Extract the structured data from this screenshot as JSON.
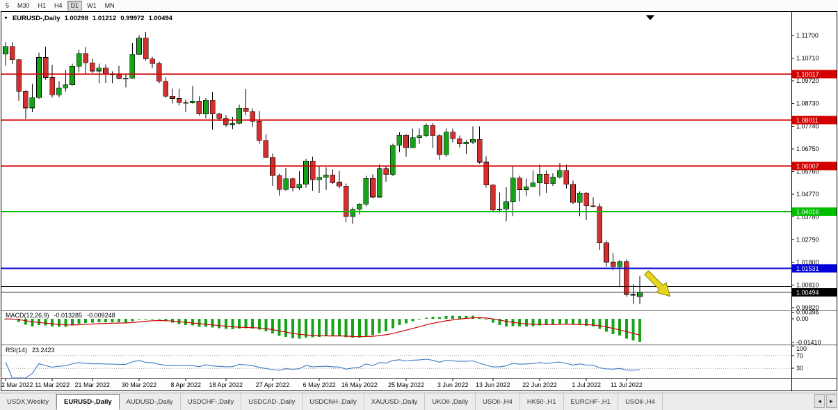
{
  "toolbar": {
    "timeframes": [
      {
        "label": "5",
        "active": false
      },
      {
        "label": "M30",
        "active": false
      },
      {
        "label": "H1",
        "active": false
      },
      {
        "label": "H4",
        "active": false
      },
      {
        "label": "D1",
        "active": true
      },
      {
        "label": "W1",
        "active": false
      },
      {
        "label": "MN",
        "active": false
      }
    ]
  },
  "chart_header": {
    "caret": "▼",
    "symbol": "EURUSD-,Daily",
    "open": "1.00298",
    "high": "1.01212",
    "low": "0.99972",
    "close": "1.00494"
  },
  "chart_data": {
    "type": "candlestick",
    "symbol": "EURUSD-,Daily",
    "price_range": {
      "min": 0.997,
      "max": 1.127
    },
    "colors": {
      "up": "#17A317",
      "down": "#D32F2F",
      "wick": "#000000",
      "macd_hist": "#17A317",
      "macd_signal": "#CC0000",
      "rsi_line": "#3A76C4",
      "level_dotted": "#999999"
    },
    "candles": [
      [
        1.1089,
        1.1141,
        1.1037,
        1.1122
      ],
      [
        1.1122,
        1.1141,
        1.1045,
        1.1064
      ],
      [
        1.1064,
        1.1066,
        1.0885,
        1.0926
      ],
      [
        1.0926,
        1.0932,
        1.0806,
        1.0854
      ],
      [
        1.0854,
        1.0959,
        1.0835,
        1.0899
      ],
      [
        1.0899,
        1.1095,
        1.0894,
        1.1074
      ],
      [
        1.1074,
        1.1121,
        1.0977,
        1.0986
      ],
      [
        1.0986,
        1.1042,
        1.09,
        1.0911
      ],
      [
        1.0911,
        1.0971,
        1.0901,
        1.0941
      ],
      [
        1.0941,
        1.1019,
        1.0926,
        1.0955
      ],
      [
        1.0955,
        1.1046,
        1.0951,
        1.1035
      ],
      [
        1.1035,
        1.1108,
        1.1009,
        1.1091
      ],
      [
        1.1091,
        1.1119,
        1.1002,
        1.1051
      ],
      [
        1.1051,
        1.1069,
        1.1006,
        1.1015
      ],
      [
        1.1015,
        1.1047,
        1.0962,
        1.1028
      ],
      [
        1.1028,
        1.1044,
        1.0963,
        1.1003
      ],
      [
        1.1003,
        1.1014,
        1.0962,
        1.0997
      ],
      [
        1.0997,
        1.1038,
        1.0979,
        1.0982
      ],
      [
        1.0982,
        1.0999,
        1.0944,
        1.0984
      ],
      [
        1.0984,
        1.1137,
        1.0982,
        1.1087
      ],
      [
        1.1087,
        1.1171,
        1.1084,
        1.1158
      ],
      [
        1.1158,
        1.1185,
        1.1061,
        1.1067
      ],
      [
        1.1067,
        1.1077,
        1.1027,
        1.1047
      ],
      [
        1.1047,
        1.1056,
        1.0962,
        1.097
      ],
      [
        1.097,
        1.0988,
        1.0898,
        1.0905
      ],
      [
        1.0905,
        1.0937,
        1.0874,
        1.0895
      ],
      [
        1.0895,
        1.0938,
        1.0864,
        1.0877
      ],
      [
        1.0877,
        1.089,
        1.0836,
        1.0876
      ],
      [
        1.0876,
        1.095,
        1.0872,
        1.0883
      ],
      [
        1.0883,
        1.0904,
        1.0821,
        1.0827
      ],
      [
        1.0827,
        1.0897,
        1.0809,
        1.0887
      ],
      [
        1.0887,
        1.0924,
        1.0758,
        1.0827
      ],
      [
        1.0827,
        1.0832,
        1.0796,
        1.0808
      ],
      [
        1.0808,
        1.0822,
        1.077,
        1.0781
      ],
      [
        1.0781,
        1.0815,
        1.0761,
        1.0786
      ],
      [
        1.0786,
        1.0867,
        1.0783,
        1.0853
      ],
      [
        1.0853,
        1.0936,
        1.0822,
        1.0838
      ],
      [
        1.0838,
        1.0852,
        1.077,
        1.0795
      ],
      [
        1.0795,
        1.084,
        1.0697,
        1.0712
      ],
      [
        1.0712,
        1.0738,
        1.0635,
        1.0637
      ],
      [
        1.0637,
        1.0655,
        1.0514,
        1.0559
      ],
      [
        1.0559,
        1.0567,
        1.0471,
        1.0498
      ],
      [
        1.0498,
        1.0593,
        1.0492,
        1.0545
      ],
      [
        1.0545,
        1.0549,
        1.049,
        1.0505
      ],
      [
        1.0505,
        1.0578,
        1.0495,
        1.052
      ],
      [
        1.052,
        1.0632,
        1.0506,
        1.0622
      ],
      [
        1.0622,
        1.0642,
        1.0493,
        1.054
      ],
      [
        1.054,
        1.0599,
        1.0483,
        1.0551
      ],
      [
        1.0551,
        1.0594,
        1.0495,
        1.0561
      ],
      [
        1.0561,
        1.0585,
        1.0522,
        1.0529
      ],
      [
        1.0529,
        1.0579,
        1.0503,
        1.0513
      ],
      [
        1.0513,
        1.0525,
        1.0354,
        1.0379
      ],
      [
        1.0379,
        1.042,
        1.0348,
        1.0411
      ],
      [
        1.0411,
        1.0437,
        1.0388,
        1.0434
      ],
      [
        1.0434,
        1.0557,
        1.0424,
        1.0546
      ],
      [
        1.0546,
        1.0564,
        1.046,
        1.0465
      ],
      [
        1.0465,
        1.0607,
        1.0462,
        1.0588
      ],
      [
        1.0588,
        1.0604,
        1.0532,
        1.0563
      ],
      [
        1.0563,
        1.0697,
        1.0556,
        1.0691
      ],
      [
        1.0691,
        1.0748,
        1.0661,
        1.0735
      ],
      [
        1.0735,
        1.0738,
        1.0642,
        1.068
      ],
      [
        1.068,
        1.0765,
        1.0677,
        1.0724
      ],
      [
        1.0724,
        1.0764,
        1.0697,
        1.0733
      ],
      [
        1.0733,
        1.0786,
        1.0726,
        1.0777
      ],
      [
        1.0777,
        1.0787,
        1.0678,
        1.0733
      ],
      [
        1.0733,
        1.0739,
        1.0627,
        1.065
      ],
      [
        1.065,
        1.0764,
        1.0641,
        1.0748
      ],
      [
        1.0748,
        1.0765,
        1.0704,
        1.0719
      ],
      [
        1.0719,
        1.0734,
        1.0683,
        1.0697
      ],
      [
        1.0697,
        1.0712,
        1.0653,
        1.0704
      ],
      [
        1.0704,
        1.0774,
        1.0696,
        1.0716
      ],
      [
        1.0716,
        1.0773,
        1.0611,
        1.0617
      ],
      [
        1.0617,
        1.0643,
        1.0506,
        1.0518
      ],
      [
        1.0518,
        1.052,
        1.0399,
        1.0408
      ],
      [
        1.0408,
        1.0485,
        1.0397,
        1.0413
      ],
      [
        1.0413,
        1.0507,
        1.0359,
        1.0444
      ],
      [
        1.0444,
        1.0601,
        1.0381,
        1.0548
      ],
      [
        1.0548,
        1.0557,
        1.0445,
        1.0497
      ],
      [
        1.0497,
        1.0546,
        1.0469,
        1.051
      ],
      [
        1.051,
        1.0582,
        1.0509,
        1.0527
      ],
      [
        1.0527,
        1.0606,
        1.0469,
        1.0565
      ],
      [
        1.0565,
        1.058,
        1.0483,
        1.0523
      ],
      [
        1.0523,
        1.0568,
        1.0513,
        1.0553
      ],
      [
        1.0553,
        1.0614,
        1.0546,
        1.0581
      ],
      [
        1.0581,
        1.0606,
        1.0502,
        1.052
      ],
      [
        1.052,
        1.0536,
        1.0434,
        1.0442
      ],
      [
        1.0442,
        1.0489,
        1.0381,
        1.0482
      ],
      [
        1.0482,
        1.0486,
        1.0365,
        1.0426
      ],
      [
        1.0426,
        1.0463,
        1.0419,
        1.0423
      ],
      [
        1.0423,
        1.0436,
        1.0235,
        1.0265
      ],
      [
        1.0265,
        1.0276,
        1.0162,
        1.0181
      ],
      [
        1.0181,
        1.0221,
        1.0144,
        1.016
      ],
      [
        1.016,
        1.019,
        1.0071,
        1.0183
      ],
      [
        1.0183,
        1.0193,
        1.003,
        1.004
      ],
      [
        1.004,
        1.0086,
        0.9999,
        1.0037
      ],
      [
        1.003,
        1.0121,
        0.9997,
        1.0049
      ]
    ],
    "x_labels": [
      {
        "i": 0,
        "label": "2 Mar 2022"
      },
      {
        "i": 7,
        "label": "11 Mar 2022"
      },
      {
        "i": 13,
        "label": "21 Mar 2022"
      },
      {
        "i": 20,
        "label": "30 Mar 2022"
      },
      {
        "i": 27,
        "label": "8 Apr 2022"
      },
      {
        "i": 33,
        "label": "18 Apr 2022"
      },
      {
        "i": 40,
        "label": "27 Apr 2022"
      },
      {
        "i": 47,
        "label": "6 May 2022"
      },
      {
        "i": 53,
        "label": "16 May 2022"
      },
      {
        "i": 60,
        "label": "25 May 2022"
      },
      {
        "i": 67,
        "label": "3 Jun 2022"
      },
      {
        "i": 73,
        "label": "13 Jun 2022"
      },
      {
        "i": 80,
        "label": "22 Jun 2022"
      },
      {
        "i": 87,
        "label": "1 Jul 2022"
      },
      {
        "i": 93,
        "label": "11 Jul 2022"
      }
    ],
    "axis_ticks": [
      {
        "v": 1.117,
        "label": "1.11700"
      },
      {
        "v": 1.1071,
        "label": "1.10710"
      },
      {
        "v": 1.0972,
        "label": "1.09720"
      },
      {
        "v": 1.0873,
        "label": "1.08730"
      },
      {
        "v": 1.0774,
        "label": "1.07740"
      },
      {
        "v": 1.0675,
        "label": "1.06750"
      },
      {
        "v": 1.0576,
        "label": "1.05760"
      },
      {
        "v": 1.0477,
        "label": "1.04770"
      },
      {
        "v": 1.0378,
        "label": "1.03780"
      },
      {
        "v": 1.0279,
        "label": "1.02790"
      },
      {
        "v": 1.018,
        "label": "1.01800"
      },
      {
        "v": 1.0081,
        "label": "1.00810"
      },
      {
        "v": 0.9982,
        "label": "0.99820"
      }
    ],
    "hlines": [
      {
        "price": 1.10017,
        "color": "#D40000",
        "width": 2,
        "tag": true,
        "label": "1.10017"
      },
      {
        "price": 1.08011,
        "color": "#D40000",
        "width": 2,
        "tag": true,
        "label": "1.08011"
      },
      {
        "price": 1.06007,
        "color": "#D40000",
        "width": 2,
        "tag": true,
        "label": "1.06007"
      },
      {
        "price": 1.04016,
        "color": "#00BE00",
        "width": 2,
        "tag": true,
        "label": "1.04016"
      },
      {
        "price": 1.01531,
        "color": "#0000D8",
        "width": 2,
        "tag": true,
        "label": "1.01531"
      },
      {
        "price": 1.0075,
        "color": "#000000",
        "width": 1,
        "tag": false,
        "label": ""
      },
      {
        "price": 1.00494,
        "color": "#333333",
        "width": 1,
        "tag": true,
        "label": "1.00494",
        "tag_bg": "#000000"
      }
    ],
    "arrow": {
      "index": 96,
      "price": 1.0135,
      "angle_deg": 45,
      "color": "#E8D51D",
      "outline": "#8F7F00"
    },
    "macd": {
      "label": "MACD(12,26,9)",
      "value_main": "-0.013285",
      "value_signal": "-0.009248",
      "params": [
        12,
        26,
        9
      ],
      "range": {
        "min": -0.015,
        "max": 0.0042
      },
      "scale_labels": [
        {
          "text": "0.00396",
          "value": 0.00396
        },
        {
          "text": "0.00",
          "value": 0
        },
        {
          "text": "-0.01410",
          "value": -0.0141
        }
      ]
    },
    "rsi": {
      "label": "RSI(14)",
      "value_text": "23.2423",
      "period": 14,
      "levels_dotted": [
        70,
        30
      ],
      "scale_labels": [
        {
          "text": "100",
          "value": 100
        },
        {
          "text": "70",
          "value": 70
        },
        {
          "text": "30",
          "value": 30
        }
      ]
    }
  },
  "tabbar": {
    "scroll_left": "◄",
    "scroll_right": "►",
    "tabs": [
      {
        "label": "USDX,Weekly",
        "active": false
      },
      {
        "label": "EURUSD-,Daily",
        "active": true
      },
      {
        "label": "AUDUSD-,Daily",
        "active": false
      },
      {
        "label": "USDCHF-,Daily",
        "active": false
      },
      {
        "label": "USDCAD-,Daily",
        "active": false
      },
      {
        "label": "USDCNH-,Daily",
        "active": false
      },
      {
        "label": "XAUUSD-,Daily",
        "active": false
      },
      {
        "label": "UKOil-,Daily",
        "active": false
      },
      {
        "label": "USOil-,H4",
        "active": false
      },
      {
        "label": "HK50-,H1",
        "active": false
      },
      {
        "label": "EURCHF-,H1",
        "active": false
      },
      {
        "label": "USOil-,H4",
        "active": false
      }
    ]
  }
}
